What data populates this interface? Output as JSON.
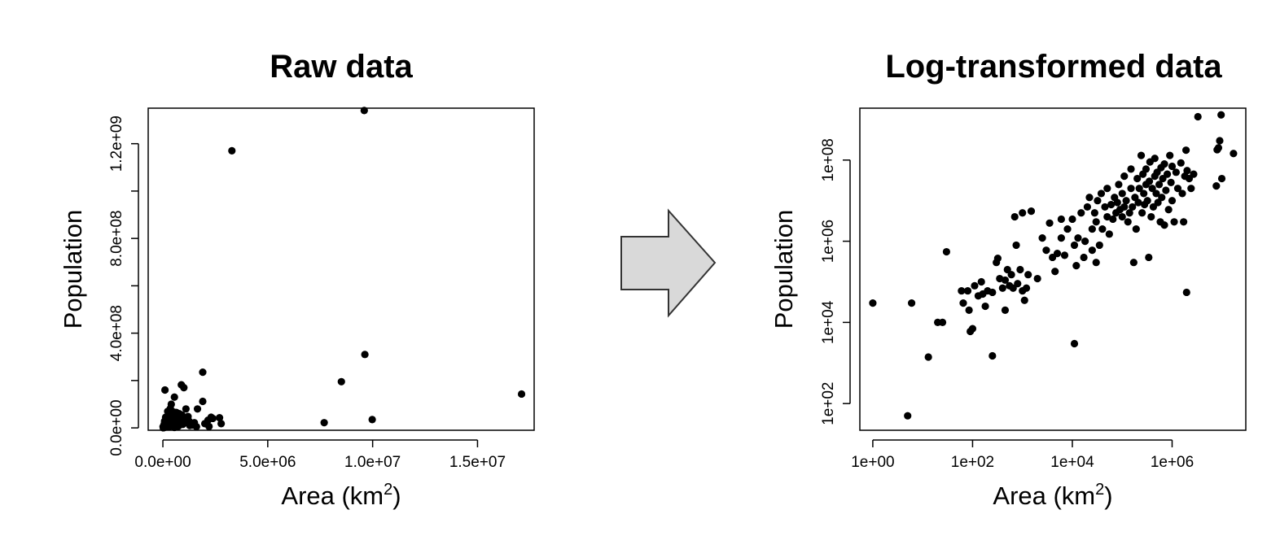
{
  "arrow": {
    "fill": "#d9d9d9",
    "stroke": "#333333"
  },
  "point_color": "#000000",
  "chart_data": [
    {
      "type": "scatter",
      "title": "Raw data",
      "xlabel": "Area (km",
      "xlabel_superscript": "2",
      "xlabel_suffix": ")",
      "ylabel": "Population",
      "x_scale": "linear",
      "y_scale": "linear",
      "xlim": [
        -700000,
        17700000
      ],
      "ylim": [
        -10000000,
        1350000000
      ],
      "x_ticks": [
        {
          "value": 0,
          "label": "0.0e+00"
        },
        {
          "value": 5000000,
          "label": "5.0e+06"
        },
        {
          "value": 10000000,
          "label": "1.0e+07"
        },
        {
          "value": 15000000,
          "label": "1.5e+07"
        }
      ],
      "y_ticks": [
        {
          "value": 0,
          "label": "0.0e+00"
        },
        {
          "value": 200000000,
          "label": ""
        },
        {
          "value": 400000000,
          "label": "4.0e+08"
        },
        {
          "value": 600000000,
          "label": ""
        },
        {
          "value": 800000000,
          "label": "8.0e+08"
        },
        {
          "value": 1000000000,
          "label": ""
        },
        {
          "value": 1200000000,
          "label": "1.2e+09"
        }
      ],
      "points": [
        [
          9600000,
          1340000000
        ],
        [
          3290000,
          1170000000
        ],
        [
          9630000,
          310000000
        ],
        [
          8510000,
          195000000
        ],
        [
          17100000,
          143000000
        ],
        [
          9980000,
          35000000
        ],
        [
          7690000,
          22000000
        ],
        [
          1900000,
          235000000
        ],
        [
          1000000,
          170000000
        ],
        [
          881000,
          182000000
        ],
        [
          100000,
          160000000
        ],
        [
          357000,
          82000000
        ],
        [
          1100000,
          80000000
        ],
        [
          1900000,
          112000000
        ],
        [
          1650000,
          80000000
        ],
        [
          513000,
          67000000
        ],
        [
          300000,
          60000000
        ],
        [
          643000,
          65000000
        ],
        [
          1250000,
          28000000
        ],
        [
          2380000,
          40000000
        ],
        [
          2700000,
          43000000
        ],
        [
          2300000,
          45000000
        ],
        [
          2000000,
          18000000
        ],
        [
          2150000,
          32000000
        ],
        [
          2780000,
          18000000
        ],
        [
          1600000,
          5000000
        ],
        [
          1280000,
          10000000
        ],
        [
          1000000,
          25000000
        ],
        [
          800000,
          40000000
        ],
        [
          700000,
          20000000
        ],
        [
          500000,
          30000000
        ],
        [
          400000,
          10000000
        ],
        [
          300000,
          5000000
        ],
        [
          200000,
          20000000
        ],
        [
          150000,
          10000000
        ],
        [
          100000,
          3000000
        ],
        [
          50000,
          1000000
        ],
        [
          20000,
          500000
        ],
        [
          10000,
          5000000
        ],
        [
          60000,
          15000000
        ],
        [
          250000,
          35000000
        ],
        [
          450000,
          50000000
        ],
        [
          600000,
          12000000
        ],
        [
          750000,
          8000000
        ],
        [
          900000,
          55000000
        ],
        [
          1100000,
          30000000
        ],
        [
          1200000,
          48000000
        ],
        [
          350000,
          25000000
        ],
        [
          130000,
          45000000
        ],
        [
          80000,
          28000000
        ],
        [
          40000,
          8000000
        ],
        [
          550000,
          2000000
        ],
        [
          950000,
          15000000
        ],
        [
          700000,
          5000000
        ],
        [
          1500000,
          22000000
        ],
        [
          1400000,
          12000000
        ],
        [
          2200000,
          6000000
        ],
        [
          320000,
          48000000
        ],
        [
          180000,
          32000000
        ],
        [
          470000,
          18000000
        ],
        [
          780000,
          60000000
        ],
        [
          1050000,
          40000000
        ],
        [
          650000,
          35000000
        ],
        [
          230000,
          70000000
        ],
        [
          400000,
          100000000
        ],
        [
          550000,
          130000000
        ]
      ]
    },
    {
      "type": "scatter",
      "title": "Log-transformed data",
      "xlabel": "Area (km",
      "xlabel_superscript": "2",
      "xlabel_suffix": ")",
      "ylabel": "Population",
      "x_scale": "log",
      "y_scale": "log",
      "xlim": [
        0.55,
        30000000
      ],
      "ylim": [
        22,
        1900000000
      ],
      "x_ticks": [
        {
          "value": 1,
          "label": "1e+00"
        },
        {
          "value": 100,
          "label": "1e+02"
        },
        {
          "value": 10000,
          "label": "1e+04"
        },
        {
          "value": 1000000,
          "label": "1e+06"
        }
      ],
      "y_ticks": [
        {
          "value": 100,
          "label": "1e+02"
        },
        {
          "value": 10000,
          "label": "1e+04"
        },
        {
          "value": 1000000,
          "label": "1e+06"
        },
        {
          "value": 100000000,
          "label": "1e+08"
        }
      ],
      "points": [
        [
          1,
          30000
        ],
        [
          5,
          50
        ],
        [
          6,
          30000
        ],
        [
          13,
          1400
        ],
        [
          20,
          10000
        ],
        [
          25,
          10000
        ],
        [
          30,
          550000
        ],
        [
          60,
          60000
        ],
        [
          65,
          30000
        ],
        [
          80,
          60000
        ],
        [
          85,
          20000
        ],
        [
          90,
          6000
        ],
        [
          100,
          7000
        ],
        [
          110,
          80000
        ],
        [
          130,
          45000
        ],
        [
          150,
          100000
        ],
        [
          160,
          50000
        ],
        [
          180,
          25000
        ],
        [
          200,
          60000
        ],
        [
          250,
          1500
        ],
        [
          250,
          55000
        ],
        [
          300,
          300000
        ],
        [
          320,
          380000
        ],
        [
          350,
          120000
        ],
        [
          400,
          70000
        ],
        [
          450,
          110000
        ],
        [
          450,
          20000
        ],
        [
          500,
          200000
        ],
        [
          550,
          80000
        ],
        [
          600,
          150000
        ],
        [
          650,
          70000
        ],
        [
          700,
          4000000
        ],
        [
          750,
          800000
        ],
        [
          800,
          90000
        ],
        [
          900,
          200000
        ],
        [
          1000,
          60000
        ],
        [
          1000,
          5000000
        ],
        [
          1100,
          35000
        ],
        [
          1200,
          70000
        ],
        [
          1300,
          150000
        ],
        [
          1500,
          5500000
        ],
        [
          2000,
          120000
        ],
        [
          2500,
          1200000
        ],
        [
          3000,
          600000
        ],
        [
          3500,
          2800000
        ],
        [
          4000,
          400000
        ],
        [
          4500,
          180000
        ],
        [
          5000,
          500000
        ],
        [
          6000,
          1200000
        ],
        [
          6000,
          3500000
        ],
        [
          7000,
          450000
        ],
        [
          8000,
          2000000
        ],
        [
          10000,
          3500000
        ],
        [
          11000,
          3000
        ],
        [
          11000,
          800000
        ],
        [
          12000,
          250000
        ],
        [
          13000,
          1200000
        ],
        [
          15000,
          5000000
        ],
        [
          17000,
          400000
        ],
        [
          18000,
          1000000
        ],
        [
          20000,
          7000000
        ],
        [
          22000,
          12000000
        ],
        [
          25000,
          600000
        ],
        [
          25000,
          2000000
        ],
        [
          28000,
          5000000
        ],
        [
          30000,
          300000
        ],
        [
          30000,
          3000000
        ],
        [
          32000,
          10000000
        ],
        [
          35000,
          800000
        ],
        [
          38000,
          15000000
        ],
        [
          40000,
          2000000
        ],
        [
          45000,
          7000000
        ],
        [
          50000,
          4000000
        ],
        [
          50000,
          20000000
        ],
        [
          55000,
          1500000
        ],
        [
          60000,
          8000000
        ],
        [
          65000,
          3500000
        ],
        [
          70000,
          12000000
        ],
        [
          75000,
          5000000
        ],
        [
          80000,
          9000000
        ],
        [
          85000,
          25000000
        ],
        [
          90000,
          6000000
        ],
        [
          100000,
          4000000
        ],
        [
          100000,
          15000000
        ],
        [
          110000,
          7000000
        ],
        [
          110000,
          40000000
        ],
        [
          120000,
          10000000
        ],
        [
          130000,
          3000000
        ],
        [
          140000,
          5000000
        ],
        [
          150000,
          20000000
        ],
        [
          150000,
          60000000
        ],
        [
          160000,
          7000000
        ],
        [
          170000,
          300000
        ],
        [
          180000,
          12000000
        ],
        [
          190000,
          2000000
        ],
        [
          200000,
          35000000
        ],
        [
          210000,
          9000000
        ],
        [
          220000,
          20000000
        ],
        [
          240000,
          130000000
        ],
        [
          250000,
          5000000
        ],
        [
          260000,
          45000000
        ],
        [
          270000,
          15000000
        ],
        [
          280000,
          8000000
        ],
        [
          300000,
          60000000
        ],
        [
          300000,
          25000000
        ],
        [
          320000,
          10000000
        ],
        [
          340000,
          400000
        ],
        [
          350000,
          30000000
        ],
        [
          360000,
          90000000
        ],
        [
          380000,
          4000000
        ],
        [
          400000,
          20000000
        ],
        [
          420000,
          7000000
        ],
        [
          450000,
          110000000
        ],
        [
          450000,
          40000000
        ],
        [
          480000,
          15000000
        ],
        [
          500000,
          50000000
        ],
        [
          520000,
          9000000
        ],
        [
          550000,
          25000000
        ],
        [
          580000,
          3000000
        ],
        [
          600000,
          65000000
        ],
        [
          620000,
          12000000
        ],
        [
          650000,
          35000000
        ],
        [
          700000,
          80000000
        ],
        [
          700000,
          2500000
        ],
        [
          750000,
          18000000
        ],
        [
          800000,
          45000000
        ],
        [
          850000,
          6000000
        ],
        [
          900000,
          130000000
        ],
        [
          950000,
          28000000
        ],
        [
          1000000,
          70000000
        ],
        [
          1000000,
          10000000
        ],
        [
          1100000,
          3000000
        ],
        [
          1200000,
          50000000
        ],
        [
          1300000,
          20000000
        ],
        [
          1500000,
          85000000
        ],
        [
          1600000,
          15000000
        ],
        [
          1700000,
          3000000
        ],
        [
          1800000,
          40000000
        ],
        [
          1900000,
          175000000
        ],
        [
          1950000,
          55000
        ],
        [
          2000000,
          55000000
        ],
        [
          2200000,
          35000000
        ],
        [
          2400000,
          20000000
        ],
        [
          2700000,
          45000000
        ],
        [
          3290000,
          1170000000
        ],
        [
          7700000,
          23000000
        ],
        [
          8000000,
          180000000
        ],
        [
          8500000,
          200000000
        ],
        [
          9000000,
          300000000
        ],
        [
          9600000,
          1300000000
        ],
        [
          9900000,
          35000000
        ],
        [
          17000000,
          145000000
        ]
      ]
    }
  ]
}
